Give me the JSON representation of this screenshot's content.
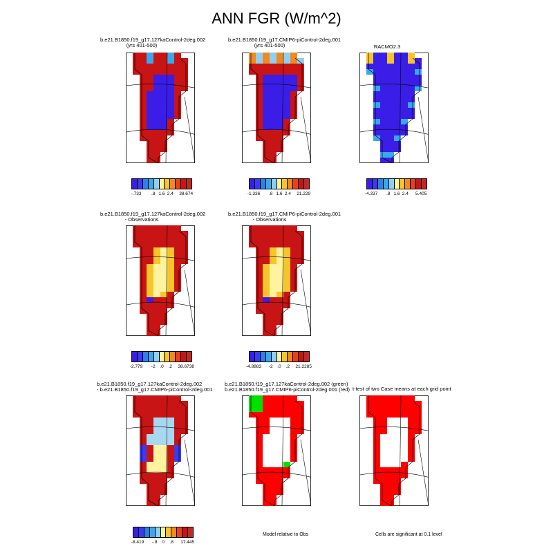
{
  "title": "ANN FGR (W/m^2)",
  "palettes": {
    "diverging": [
      "#3a1ee8",
      "#3a3af0",
      "#2f7fe8",
      "#3aa8ef",
      "#8fd0f2",
      "#fff3a0",
      "#f5c52a",
      "#f08a20",
      "#e8401a",
      "#c81414",
      "#c0282a"
    ],
    "signif": [
      "#ff0000",
      "#00e000"
    ]
  },
  "panels": [
    {
      "id": "p1",
      "title1": "b.e21.B1850.f19_g17.127kaControl-2deg.002",
      "title2": "(yrs 401-500)",
      "scheme": "case1"
    },
    {
      "id": "p2",
      "title1": "b.e21.B1850.f19_g17.CMIP6-piControl-2deg.001",
      "title2": "(yrs 401-500)",
      "scheme": "case2"
    },
    {
      "id": "p3",
      "title1": "RACMO2.3",
      "title2": "",
      "scheme": "obs"
    },
    {
      "id": "p4",
      "title1": "b.e21.B1850.f19_g17.127kaControl-2deg.002",
      "title2": "- Observations",
      "scheme": "diff1"
    },
    {
      "id": "p5",
      "title1": "b.e21.B1850.f19_g17.CMIP6-piControl-2deg.001",
      "title2": "- Observations",
      "scheme": "diff2"
    },
    {
      "id": "p7",
      "title1": "b.e21.B1850.f19_g17.127kaControl-2deg.002",
      "title2": "- b.e21.B1850.f19_g17.CMIP6-piControl-2deg.001",
      "scheme": "diff3"
    },
    {
      "id": "p8",
      "title1": "b.e21.B1850.f19_g17.127kaControl-2deg.002 (green)",
      "title2": "b.e21.B1850.f19_g17.CMIP6-piControl-2deg.001 (red)",
      "scheme": "sig_rg"
    },
    {
      "id": "p9",
      "title1": "t-test of two Case means at each grid point",
      "title2": "",
      "scheme": "sig_r"
    }
  ],
  "colorbars": [
    {
      "id": "cb1",
      "labels": [
        "-.733",
        ".8",
        "1.6",
        "2.4",
        "38.674"
      ]
    },
    {
      "id": "cb2",
      "labels": [
        "-1.336",
        ".8",
        "1.6",
        "2.4",
        "21.229"
      ]
    },
    {
      "id": "cb3",
      "labels": [
        "-4.337",
        ".8",
        "1.6",
        "2.4",
        "5.405"
      ]
    },
    {
      "id": "cb4",
      "labels": [
        "-2.779",
        "-2",
        ".0",
        ".2",
        "38.6738"
      ]
    },
    {
      "id": "cb5",
      "labels": [
        "-4.8883",
        "-2",
        ".0",
        ".2",
        "21.2285"
      ]
    },
    {
      "id": "cb7",
      "labels": [
        "-8.419",
        "-.8",
        "0",
        ".8",
        "17.445"
      ]
    }
  ],
  "notes": {
    "model_obs": "Model relative to Obs",
    "signif": "Cells are significant at 0.1 level"
  },
  "chart_data": {
    "type": "heatmap",
    "title": "ANN FGR (W/m^2)",
    "panels": [
      {
        "name": "b.e21.B1850.f19_g17.127kaControl-2deg.002 (yrs 401-500)",
        "colorbar_min": -0.733,
        "colorbar_ticks": [
          0.8,
          1.6,
          2.4
        ],
        "colorbar_max": 38.674
      },
      {
        "name": "b.e21.B1850.f19_g17.CMIP6-piControl-2deg.001 (yrs 401-500)",
        "colorbar_min": -1.336,
        "colorbar_ticks": [
          0.8,
          1.6,
          2.4
        ],
        "colorbar_max": 21.229
      },
      {
        "name": "RACMO2.3",
        "colorbar_min": -4.337,
        "colorbar_ticks": [
          0.8,
          1.6,
          2.4
        ],
        "colorbar_max": 5.405
      },
      {
        "name": "b.e21.B1850.f19_g17.127kaControl-2deg.002 - Observations",
        "colorbar_min": -2.779,
        "colorbar_ticks": [
          -2,
          0.0,
          0.2
        ],
        "colorbar_max": 38.6738
      },
      {
        "name": "b.e21.B1850.f19_g17.CMIP6-piControl-2deg.001 - Observations",
        "colorbar_min": -4.8883,
        "colorbar_ticks": [
          -2,
          0.0,
          0.2
        ],
        "colorbar_max": 21.2285
      },
      {
        "name": "b.e21.B1850.f19_g17.127kaControl-2deg.002 - b.e21.B1850.f19_g17.CMIP6-piControl-2deg.001",
        "colorbar_min": -8.419,
        "colorbar_ticks": [
          -0.8,
          0,
          0.8
        ],
        "colorbar_max": 17.445
      },
      {
        "name": "b.e21.B1850.f19_g17.127kaControl-2deg.002 (green) b.e21.B1850.f19_g17.CMIP6-piControl-2deg.001 (red)"
      },
      {
        "name": "t-test of two Case means at each grid point"
      }
    ]
  }
}
